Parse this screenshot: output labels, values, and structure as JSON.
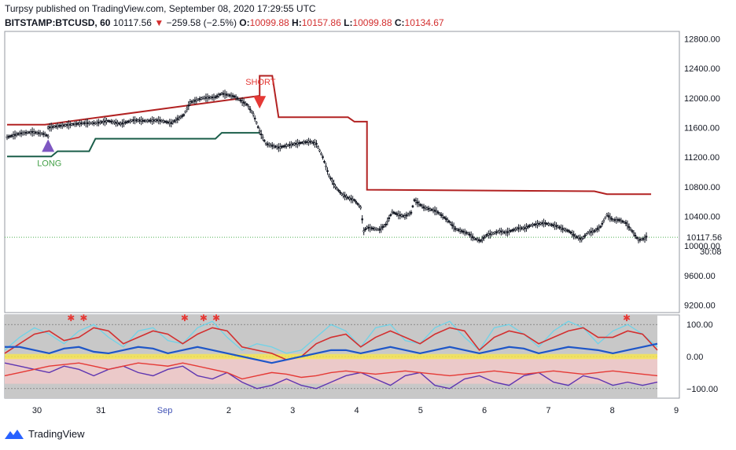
{
  "header": {
    "line1": "Turpsy published on TradingView.com, September 08, 2020 17:29:55 UTC",
    "symbol": "BITSTAMP:BTCUSD, 60",
    "last": "10117.56",
    "change": "−259.58 (−2.5%)",
    "o_label": "O:",
    "o_value": "10099.88",
    "h_label": "H:",
    "h_value": "10157.86",
    "l_label": "L:",
    "l_value": "10099.88",
    "c_label": "C:",
    "c_value": "10134.67"
  },
  "chart_data": {
    "type": "candlestick",
    "price_axis": {
      "ticks": [
        "12800.00",
        "12400.00",
        "12000.00",
        "11600.00",
        "11200.00",
        "10800.00",
        "10400.00",
        "10000.00",
        "9600.00",
        "9200.00"
      ],
      "tick_values": [
        12800,
        12400,
        12000,
        11600,
        11200,
        10800,
        10400,
        10000,
        9600,
        9200
      ],
      "ylim": [
        9100,
        12900
      ],
      "last_price_label": "10117.56",
      "countdown": "30:08"
    },
    "x_axis": {
      "tick_labels": [
        "30",
        "31",
        "Sep",
        "2",
        "3",
        "4",
        "5",
        "6",
        "7",
        "8",
        "9"
      ]
    },
    "price_series": [
      [
        0,
        11470
      ],
      [
        2,
        11520
      ],
      [
        4,
        11540
      ],
      [
        6,
        11510
      ],
      [
        6.5,
        11480
      ],
      [
        6.5,
        11600
      ],
      [
        8,
        11620
      ],
      [
        10,
        11640
      ],
      [
        12,
        11660
      ],
      [
        14,
        11660
      ],
      [
        16,
        11690
      ],
      [
        18,
        11650
      ],
      [
        20,
        11700
      ],
      [
        22,
        11690
      ],
      [
        24,
        11700
      ],
      [
        26,
        11660
      ],
      [
        28,
        11770
      ],
      [
        29,
        11940
      ],
      [
        31,
        12000
      ],
      [
        33,
        12010
      ],
      [
        34,
        12060
      ],
      [
        36,
        12020
      ],
      [
        38,
        11910
      ],
      [
        39,
        11780
      ],
      [
        40,
        11550
      ],
      [
        41,
        11380
      ],
      [
        43,
        11330
      ],
      [
        45,
        11370
      ],
      [
        47,
        11400
      ],
      [
        48,
        11410
      ],
      [
        49,
        11380
      ],
      [
        50,
        11200
      ],
      [
        51,
        10950
      ],
      [
        52,
        10800
      ],
      [
        53,
        10700
      ],
      [
        54,
        10650
      ],
      [
        55,
        10620
      ],
      [
        56,
        10520
      ],
      [
        56.5,
        10200
      ],
      [
        57,
        10250
      ],
      [
        59,
        10220
      ],
      [
        60,
        10290
      ],
      [
        61,
        10460
      ],
      [
        62,
        10420
      ],
      [
        63,
        10400
      ],
      [
        64,
        10450
      ],
      [
        64.5,
        10620
      ],
      [
        66,
        10520
      ],
      [
        68,
        10470
      ],
      [
        70,
        10330
      ],
      [
        71,
        10230
      ],
      [
        72,
        10200
      ],
      [
        73,
        10170
      ],
      [
        74,
        10100
      ],
      [
        75,
        10070
      ],
      [
        76,
        10150
      ],
      [
        77,
        10170
      ],
      [
        78,
        10200
      ],
      [
        79,
        10180
      ],
      [
        80,
        10210
      ],
      [
        81,
        10240
      ],
      [
        82,
        10240
      ],
      [
        83,
        10280
      ],
      [
        85,
        10310
      ],
      [
        87,
        10270
      ],
      [
        88,
        10230
      ],
      [
        89,
        10200
      ],
      [
        90,
        10130
      ],
      [
        91,
        10090
      ],
      [
        92,
        10180
      ],
      [
        93,
        10200
      ],
      [
        94,
        10260
      ],
      [
        95,
        10420
      ],
      [
        96,
        10350
      ],
      [
        97,
        10350
      ],
      [
        98,
        10310
      ],
      [
        99,
        10200
      ],
      [
        100,
        10080
      ],
      [
        101,
        10100
      ],
      [
        101.5,
        10150
      ]
    ],
    "stop_long": [
      [
        0,
        11210
      ],
      [
        7,
        11210
      ],
      [
        8,
        11280
      ],
      [
        13,
        11280
      ],
      [
        14,
        11450
      ],
      [
        33,
        11450
      ],
      [
        34,
        11530
      ],
      [
        40,
        11530
      ]
    ],
    "stop_short": [
      [
        0,
        11640
      ],
      [
        6,
        11640
      ],
      [
        40,
        12030
      ],
      [
        40,
        12300
      ],
      [
        42,
        12300
      ],
      [
        43,
        11740
      ],
      [
        54,
        11740
      ],
      [
        55,
        11680
      ],
      [
        57,
        11680
      ],
      [
        57,
        10760
      ],
      [
        93,
        10740
      ],
      [
        95,
        10700
      ],
      [
        102,
        10700
      ]
    ],
    "signals": [
      {
        "label": "LONG",
        "type": "long",
        "x": 6.5,
        "y": 11400
      },
      {
        "label": "SHORT",
        "type": "short",
        "x": 40,
        "y": 11900
      }
    ],
    "oscillator": {
      "ticks": [
        "100.00",
        "0.00",
        "−100.00"
      ],
      "tick_values": [
        100,
        0,
        -100
      ],
      "ylim": [
        -130,
        130
      ],
      "series": [
        {
          "values": [
            20,
            60,
            90,
            70,
            40,
            80,
            100,
            60,
            30,
            80,
            90,
            50,
            40,
            90,
            110,
            60,
            20,
            40,
            30,
            10,
            20,
            60,
            100,
            80,
            30,
            90,
            100,
            50,
            40,
            90,
            110,
            60,
            20,
            90,
            100,
            70,
            30,
            80,
            110,
            90,
            40,
            80,
            100,
            70,
            30
          ]
        },
        {
          "values": [
            10,
            40,
            70,
            80,
            50,
            60,
            90,
            80,
            40,
            60,
            80,
            70,
            40,
            70,
            90,
            80,
            30,
            20,
            10,
            -10,
            0,
            40,
            60,
            70,
            30,
            60,
            80,
            60,
            40,
            70,
            90,
            80,
            20,
            60,
            80,
            70,
            40,
            60,
            80,
            90,
            60,
            60,
            80,
            70,
            20
          ]
        },
        {
          "values": [
            30,
            30,
            20,
            10,
            25,
            30,
            15,
            10,
            20,
            30,
            25,
            10,
            20,
            30,
            20,
            10,
            0,
            -10,
            -20,
            -10,
            0,
            10,
            20,
            20,
            10,
            20,
            30,
            20,
            10,
            20,
            30,
            20,
            10,
            20,
            30,
            25,
            10,
            20,
            30,
            25,
            20,
            10,
            20,
            30,
            40
          ]
        },
        {
          "values": [
            -20,
            -30,
            -40,
            -50,
            -30,
            -40,
            -60,
            -40,
            -30,
            -50,
            -60,
            -40,
            -30,
            -60,
            -70,
            -50,
            -80,
            -100,
            -90,
            -70,
            -90,
            -100,
            -80,
            -60,
            -50,
            -70,
            -90,
            -60,
            -50,
            -90,
            -100,
            -70,
            -60,
            -80,
            -90,
            -60,
            -50,
            -80,
            -90,
            -60,
            -70,
            -90,
            -80,
            -90,
            -80
          ]
        },
        {
          "values": [
            -60,
            -50,
            -40,
            -30,
            -25,
            -20,
            -30,
            -40,
            -30,
            -20,
            -25,
            -30,
            -20,
            -30,
            -40,
            -50,
            -70,
            -60,
            -50,
            -55,
            -65,
            -60,
            -50,
            -45,
            -50,
            -55,
            -50,
            -45,
            -50,
            -55,
            -60,
            -55,
            -50,
            -45,
            -50,
            -55,
            -50,
            -45,
            -50,
            -55,
            -50,
            -45,
            -50,
            -55,
            -60
          ]
        }
      ],
      "cross_signals": [
        10,
        12,
        28,
        31,
        33,
        98
      ]
    }
  },
  "footer": {
    "brand": "TradingView"
  }
}
